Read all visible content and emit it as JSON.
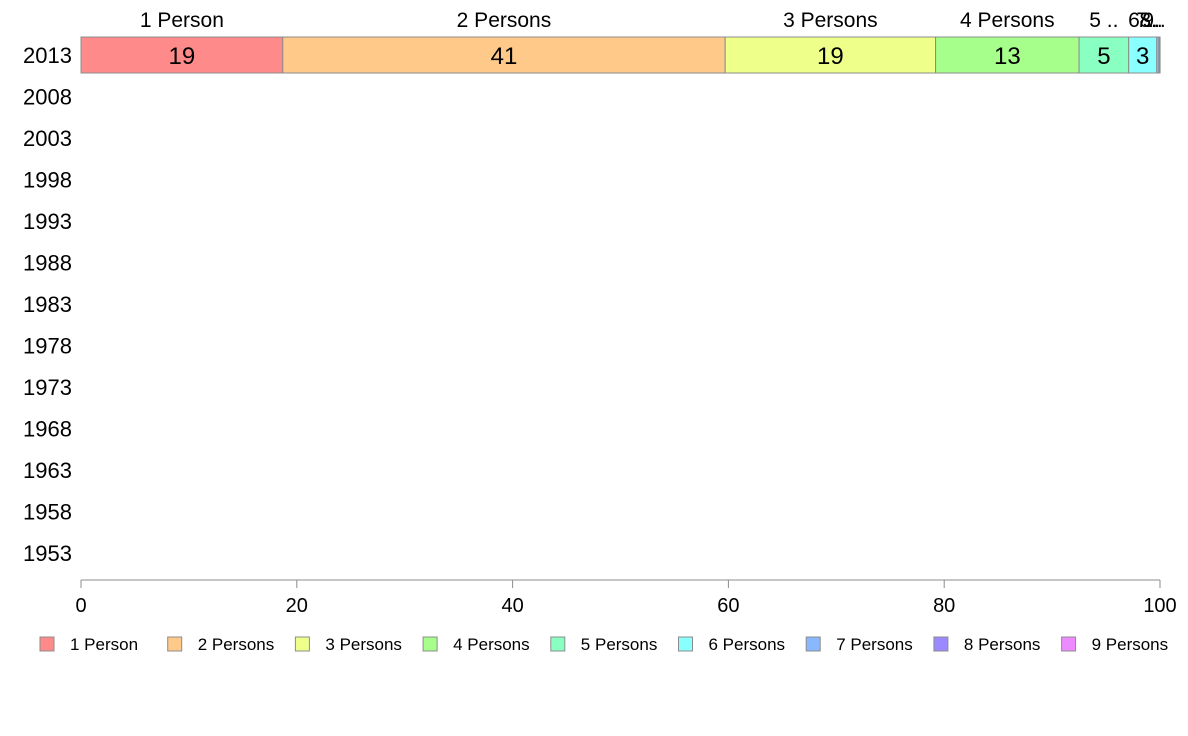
{
  "chart_data": {
    "type": "bar",
    "orientation": "horizontal",
    "stacked": true,
    "categories": [
      "2013",
      "2008",
      "2003",
      "1998",
      "1993",
      "1988",
      "1983",
      "1978",
      "1973",
      "1968",
      "1963",
      "1958",
      "1953"
    ],
    "series": [
      {
        "name": "1 Person",
        "color": "#ff8a8a",
        "values": [
          18.7,
          null,
          null,
          null,
          null,
          null,
          null,
          null,
          null,
          null,
          null,
          null,
          null
        ]
      },
      {
        "name": "2 Persons",
        "color": "#ffc98a",
        "values": [
          41.0,
          null,
          null,
          null,
          null,
          null,
          null,
          null,
          null,
          null,
          null,
          null,
          null
        ]
      },
      {
        "name": "3 Persons",
        "color": "#eeff8a",
        "values": [
          19.5,
          null,
          null,
          null,
          null,
          null,
          null,
          null,
          null,
          null,
          null,
          null,
          null
        ]
      },
      {
        "name": "4 Persons",
        "color": "#a6ff8a",
        "values": [
          13.3,
          null,
          null,
          null,
          null,
          null,
          null,
          null,
          null,
          null,
          null,
          null,
          null
        ]
      },
      {
        "name": "5 Persons",
        "color": "#8affc2",
        "values": [
          4.6,
          null,
          null,
          null,
          null,
          null,
          null,
          null,
          null,
          null,
          null,
          null,
          null
        ]
      },
      {
        "name": "6 Persons",
        "color": "#8affff",
        "values": [
          2.6,
          null,
          null,
          null,
          null,
          null,
          null,
          null,
          null,
          null,
          null,
          null,
          null
        ]
      },
      {
        "name": "7 Persons",
        "color": "#8ab8ff",
        "values": [
          0.2,
          null,
          null,
          null,
          null,
          null,
          null,
          null,
          null,
          null,
          null,
          null,
          null
        ]
      },
      {
        "name": "8 Persons",
        "color": "#9b8aff",
        "values": [
          0.05,
          null,
          null,
          null,
          null,
          null,
          null,
          null,
          null,
          null,
          null,
          null,
          null
        ]
      },
      {
        "name": "9 Persons",
        "color": "#ee8aff",
        "values": [
          0.05,
          null,
          null,
          null,
          null,
          null,
          null,
          null,
          null,
          null,
          null,
          null,
          null
        ]
      }
    ],
    "data_labels": [
      "19",
      "41",
      "19",
      "13",
      "5",
      "3",
      "",
      "",
      ""
    ],
    "segment_header_labels": [
      "1 Person",
      "2 Persons",
      "3 Persons",
      "4 Persons",
      "5 ..",
      "6 ..",
      "7..",
      "8..",
      "9.."
    ],
    "xlim": [
      0,
      100
    ],
    "x_ticks": [
      0,
      20,
      40,
      60,
      80,
      100
    ],
    "title": "",
    "xlabel": "",
    "ylabel": "",
    "grid": false,
    "legend_position": "bottom"
  }
}
